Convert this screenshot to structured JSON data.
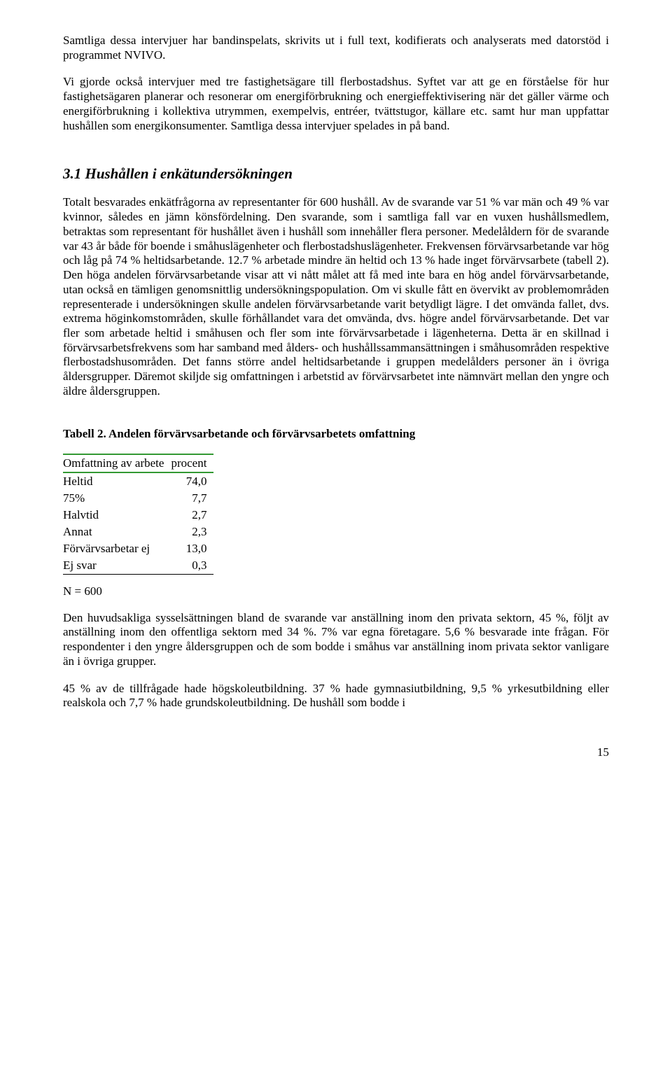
{
  "paragraphs": {
    "p1": "Samtliga dessa intervjuer har bandinspelats, skrivits ut i full text, kodifierats och analyserats med datorstöd i programmet NVIVO.",
    "p2": "Vi gjorde också intervjuer med tre fastighetsägare till flerbostadshus. Syftet var att ge en förståelse för hur fastighetsägaren planerar och resonerar om energiförbrukning och energieffektivisering när det gäller värme och energiförbrukning i kollektiva utrymmen, exempelvis, entréer, tvättstugor, källare etc. samt hur man uppfattar hushållen som energikonsumenter. Samtliga dessa intervjuer spelades in på band."
  },
  "section_heading": "3.1 Hushållen i enkätundersökningen",
  "paragraphs_body": {
    "p3": "Totalt besvarades enkätfrågorna av representanter för 600 hushåll. Av de svarande var 51 % var män och 49 % var kvinnor, således en jämn könsfördelning. Den svarande, som i samtliga fall var en vuxen hushållsmedlem, betraktas som representant för hushållet även i hushåll som innehåller flera personer. Medelåldern för de svarande var 43 år både för boende i småhuslägenheter och flerbostadshuslägenheter. Frekvensen förvärvsarbetande var hög och låg på 74 % heltidsarbetande. 12.7 % arbetade mindre än heltid och 13 % hade inget förvärvsarbete (tabell 2). Den höga andelen förvärvsarbetande visar att vi nått målet att få med inte bara en hög andel förvärvsarbetande, utan också en tämligen genomsnittlig undersökningspopulation. Om vi skulle fått en övervikt av problemområden representerade i undersökningen skulle andelen förvärvsarbetande varit betydligt lägre. I det omvända fallet, dvs. extrema höginkomstområden, skulle förhållandet vara det omvända, dvs. högre andel förvärvsarbetande. Det var fler som arbetade heltid i småhusen och fler som inte förvärvsarbetade i lägenheterna. Detta är en skillnad i förvärvsarbetsfrekvens som har samband med ålders- och hushållssammansättningen i småhusområden respektive flerbostadshusområden. Det fanns större andel heltidsarbetande i gruppen medelålders personer än i övriga åldersgrupper. Däremot skiljde sig omfattningen i arbetstid av förvärvsarbetet inte nämnvärt mellan den yngre och äldre åldersgruppen."
  },
  "table": {
    "caption": "Tabell 2. Andelen förvärvsarbetande och förvärvsarbetets omfattning",
    "header_col1": "Omfattning av arbete",
    "header_col2": "procent",
    "rows": [
      {
        "label": "Heltid",
        "value": "74,0"
      },
      {
        "label": "75%",
        "value": "7,7"
      },
      {
        "label": "Halvtid",
        "value": "2,7"
      },
      {
        "label": "Annat",
        "value": "2,3"
      },
      {
        "label": "Förvärvsarbetar ej",
        "value": "13,0"
      },
      {
        "label": "Ej svar",
        "value": "0,3"
      }
    ],
    "footer": "N = 600",
    "rule_color": "#339933"
  },
  "paragraphs_after": {
    "p4": "Den huvudsakliga sysselsättningen bland de svarande var anställning inom den privata sektorn, 45 %, följt av anställning inom den offentliga sektorn med 34 %. 7% var egna företagare. 5,6 % besvarade inte frågan.  För respondenter i den yngre åldersgruppen och de som bodde i småhus var anställning inom privata sektor vanligare än i övriga grupper.",
    "p5": "45 % av de tillfrågade hade högskoleutbildning. 37 % hade gymnasiutbildning, 9,5 % yrkesutbildning eller realskola och 7,7 % hade grundskoleutbildning. De hushåll som bodde i"
  },
  "page_number": "15"
}
